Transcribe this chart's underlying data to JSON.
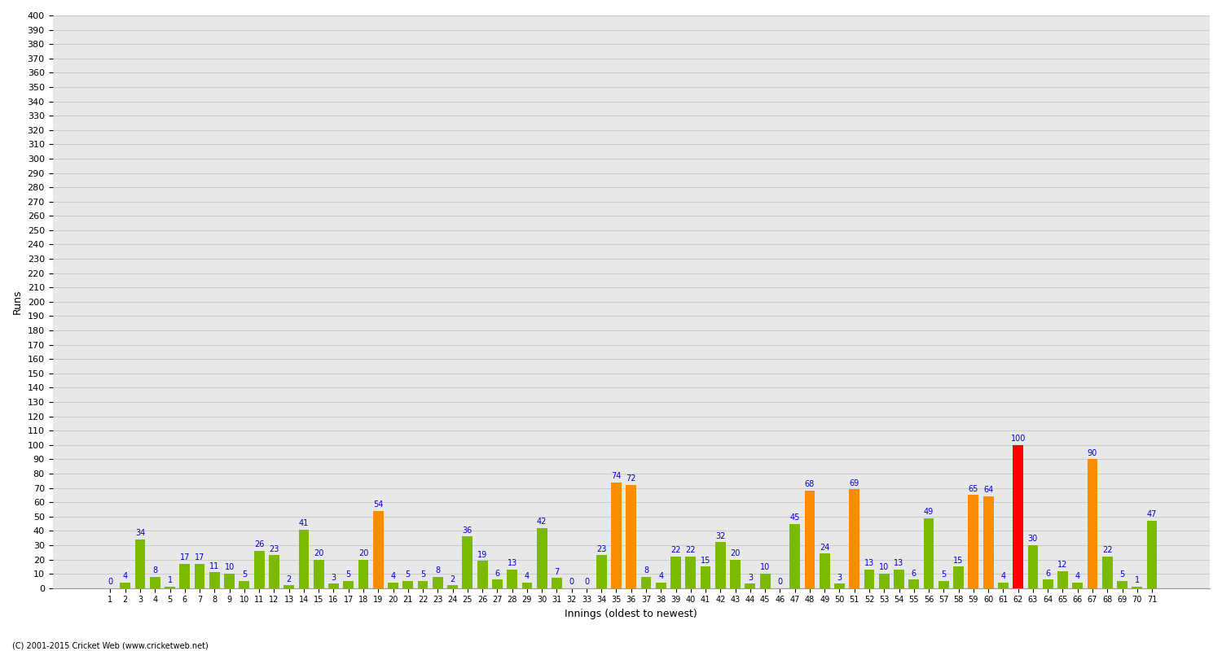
{
  "xlabel": "Innings (oldest to newest)",
  "ylabel": "Runs",
  "background_color": "#ffffff",
  "grid_color": "#cccccc",
  "innings": [
    "1",
    "2",
    "3",
    "4",
    "5",
    "6",
    "7",
    "8",
    "9",
    "10",
    "11",
    "12",
    "13",
    "14",
    "15",
    "16",
    "17",
    "18",
    "19",
    "20",
    "21",
    "22",
    "23",
    "24",
    "25",
    "26",
    "27",
    "28",
    "29",
    "30",
    "31",
    "32",
    "33",
    "34",
    "35",
    "36",
    "37",
    "38",
    "39",
    "40",
    "41",
    "42",
    "43",
    "44",
    "45",
    "46",
    "47",
    "48",
    "49",
    "50",
    "51",
    "52",
    "53",
    "54",
    "55",
    "56",
    "57",
    "58",
    "59",
    "60",
    "61",
    "62",
    "63",
    "64",
    "65",
    "66",
    "67",
    "68",
    "69",
    "70",
    "71"
  ],
  "values": [
    0,
    4,
    34,
    8,
    1,
    17,
    17,
    11,
    10,
    5,
    26,
    23,
    2,
    41,
    20,
    3,
    5,
    20,
    54,
    4,
    5,
    5,
    8,
    2,
    36,
    19,
    6,
    13,
    4,
    42,
    7,
    0,
    0,
    23,
    74,
    72,
    8,
    4,
    22,
    22,
    15,
    32,
    20,
    3,
    10,
    0,
    45,
    68,
    24,
    3,
    69,
    13,
    10,
    13,
    6,
    49,
    5,
    15,
    65,
    64,
    4,
    100,
    30,
    6,
    12,
    4,
    90,
    22,
    5,
    1,
    47
  ],
  "colors": [
    "#7cba00",
    "#7cba00",
    "#7cba00",
    "#7cba00",
    "#7cba00",
    "#7cba00",
    "#7cba00",
    "#7cba00",
    "#7cba00",
    "#7cba00",
    "#7cba00",
    "#7cba00",
    "#7cba00",
    "#7cba00",
    "#7cba00",
    "#7cba00",
    "#7cba00",
    "#7cba00",
    "#ff8c00",
    "#7cba00",
    "#7cba00",
    "#7cba00",
    "#7cba00",
    "#7cba00",
    "#7cba00",
    "#7cba00",
    "#7cba00",
    "#7cba00",
    "#7cba00",
    "#7cba00",
    "#7cba00",
    "#7cba00",
    "#7cba00",
    "#7cba00",
    "#ff8c00",
    "#ff8c00",
    "#7cba00",
    "#7cba00",
    "#7cba00",
    "#7cba00",
    "#7cba00",
    "#7cba00",
    "#7cba00",
    "#7cba00",
    "#7cba00",
    "#7cba00",
    "#7cba00",
    "#ff8c00",
    "#7cba00",
    "#7cba00",
    "#ff8c00",
    "#7cba00",
    "#7cba00",
    "#7cba00",
    "#7cba00",
    "#7cba00",
    "#7cba00",
    "#7cba00",
    "#ff8c00",
    "#ff8c00",
    "#7cba00",
    "#ff0000",
    "#7cba00",
    "#7cba00",
    "#7cba00",
    "#7cba00",
    "#ff8c00",
    "#7cba00",
    "#7cba00",
    "#7cba00",
    "#7cba00"
  ],
  "label_color": "#0000cc",
  "label_fontsize": 7,
  "tick_fontsize": 7,
  "ylim": [
    0,
    400
  ],
  "yticks": [
    0,
    10,
    20,
    30,
    40,
    50,
    60,
    70,
    80,
    90,
    100,
    110,
    120,
    130,
    140,
    150,
    160,
    170,
    180,
    190,
    200,
    210,
    220,
    230,
    240,
    250,
    260,
    270,
    280,
    290,
    300,
    310,
    320,
    330,
    340,
    350,
    360,
    370,
    380,
    390,
    400
  ],
  "footer": "(C) 2001-2015 Cricket Web (www.cricketweb.net)"
}
